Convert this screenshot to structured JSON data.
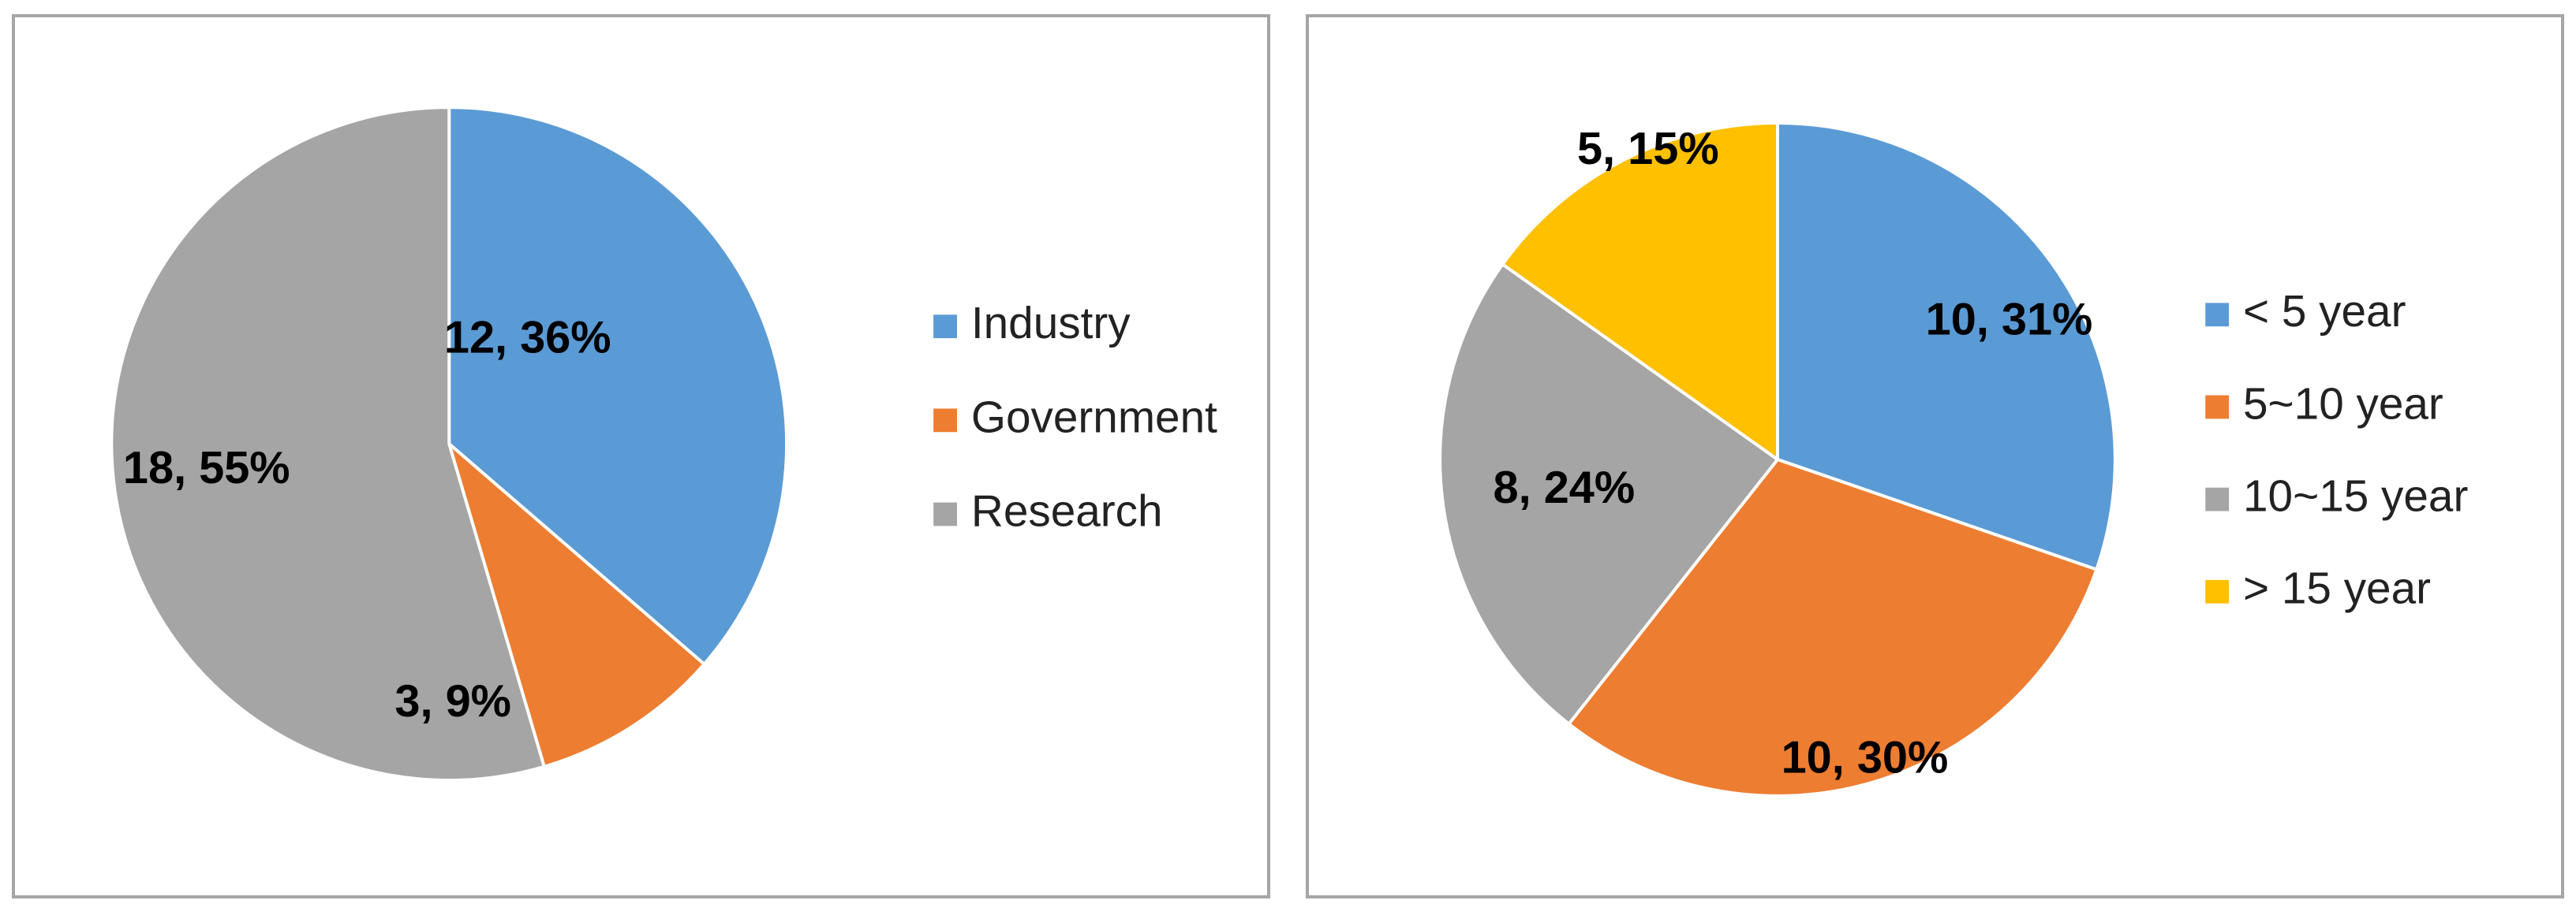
{
  "chart_data": [
    {
      "type": "pie",
      "title": "",
      "categories": [
        "Industry",
        "Government",
        "Research"
      ],
      "values": [
        12,
        3,
        18
      ],
      "percent_labels": [
        "36%",
        "9%",
        "55%"
      ],
      "data_labels": [
        "12, 36%",
        "3, 9%",
        "18, 55%"
      ],
      "colors": [
        "#5b9bd5",
        "#ed7d31",
        "#a5a5a5"
      ],
      "legend_position": "right"
    },
    {
      "type": "pie",
      "title": "",
      "categories": [
        "< 5 year",
        "5~10 year",
        "10~15 year",
        "> 15 year"
      ],
      "values": [
        10,
        10,
        8,
        5
      ],
      "percent_labels": [
        "31%",
        "30%",
        "24%",
        "15%"
      ],
      "data_labels": [
        "10, 31%",
        "10, 30%",
        "8, 24%",
        "5, 15%"
      ],
      "colors": [
        "#5b9bd5",
        "#ed7d31",
        "#a5a5a5",
        "#ffc000"
      ],
      "legend_position": "right"
    }
  ]
}
